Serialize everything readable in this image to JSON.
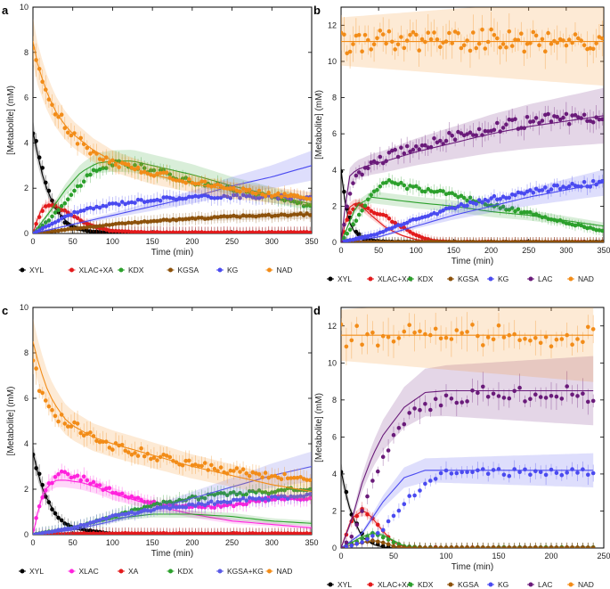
{
  "chart_data": [
    {
      "type": "scatter",
      "panel": "a",
      "xlabel": "Time (min)",
      "ylabel": "[Metabolite] (mM)",
      "xlim": [
        0,
        350
      ],
      "ylim": [
        0,
        10
      ],
      "xticks": [
        0,
        50,
        100,
        150,
        200,
        250,
        300,
        350
      ],
      "yticks": [
        0,
        2,
        4,
        6,
        8,
        10
      ],
      "legend_position": "bottom",
      "series": [
        {
          "name": "XYL",
          "color": "#000000",
          "x": [
            0,
            10,
            20,
            30,
            40,
            50,
            75,
            100,
            150,
            200,
            250,
            300,
            350
          ],
          "y": [
            4.5,
            3.0,
            1.8,
            1.0,
            0.5,
            0.25,
            0.08,
            0.05,
            0.02,
            0.02,
            0.02,
            0.02,
            0.02
          ],
          "fit": [
            4.5,
            2.8,
            1.7,
            1.0,
            0.6,
            0.35,
            0.1,
            0.03,
            0,
            0,
            0,
            0,
            0
          ]
        },
        {
          "name": "XLAC+XA",
          "color": "#e31a1c",
          "x": [
            0,
            10,
            20,
            30,
            40,
            50,
            60,
            75,
            100,
            150,
            200,
            250,
            300,
            350
          ],
          "y": [
            0.1,
            0.9,
            1.3,
            1.2,
            1.0,
            0.8,
            0.55,
            0.3,
            0.1,
            0.05,
            0.05,
            0.05,
            0.05,
            0.05
          ],
          "fit": [
            0,
            1.1,
            1.3,
            1.2,
            1.0,
            0.8,
            0.6,
            0.4,
            0.15,
            0.02,
            0,
            0,
            0,
            0
          ]
        },
        {
          "name": "KDX",
          "color": "#2ca02c",
          "x": [
            0,
            20,
            40,
            60,
            80,
            100,
            125,
            150,
            200,
            250,
            300,
            350
          ],
          "y": [
            0,
            0.6,
            1.4,
            2.2,
            2.8,
            3.1,
            3.0,
            2.8,
            2.3,
            2.0,
            1.6,
            1.2
          ],
          "fit": [
            0,
            0.9,
            1.9,
            2.7,
            3.1,
            3.2,
            3.2,
            3.0,
            2.6,
            2.1,
            1.7,
            1.3
          ]
        },
        {
          "name": "KGSA",
          "color": "#8c510a",
          "x": [
            0,
            50,
            100,
            150,
            200,
            250,
            300,
            350
          ],
          "y": [
            0,
            0.2,
            0.4,
            0.55,
            0.65,
            0.75,
            0.8,
            0.85
          ],
          "fit": [
            0,
            0.2,
            0.4,
            0.55,
            0.65,
            0.72,
            0.78,
            0.82
          ]
        },
        {
          "name": "KG",
          "color": "#4a4af0",
          "x": [
            0,
            50,
            100,
            150,
            200,
            250,
            300,
            350
          ],
          "y": [
            0,
            0.9,
            1.3,
            1.5,
            1.6,
            1.65,
            1.6,
            1.6
          ],
          "fit": [
            0,
            0.4,
            0.8,
            1.2,
            1.6,
            2.1,
            2.5,
            3.0
          ]
        },
        {
          "name": "NAD",
          "color": "#f28c18",
          "x": [
            0,
            5,
            10,
            20,
            30,
            40,
            50,
            75,
            100,
            150,
            200,
            250,
            300,
            350
          ],
          "y": [
            8.0,
            7.3,
            6.9,
            6.0,
            5.3,
            4.8,
            4.3,
            3.6,
            3.1,
            2.7,
            2.3,
            2.0,
            1.7,
            1.6
          ],
          "fit": [
            8.5,
            7.6,
            7.0,
            6.0,
            5.3,
            4.8,
            4.4,
            3.7,
            3.2,
            2.6,
            2.2,
            1.9,
            1.7,
            1.5
          ]
        }
      ],
      "legend": [
        "XYL",
        "XLAC+XA",
        "KDX",
        "KGSA",
        "KG",
        "NAD"
      ]
    },
    {
      "type": "scatter",
      "panel": "b",
      "xlabel": "Time (min)",
      "ylabel": "[Metabolite] (mM)",
      "xlim": [
        0,
        350
      ],
      "ylim": [
        0,
        13
      ],
      "xticks": [
        0,
        50,
        100,
        150,
        200,
        250,
        300,
        350
      ],
      "yticks": [
        0,
        2,
        4,
        6,
        8,
        10,
        12
      ],
      "legend_position": "bottom",
      "series": [
        {
          "name": "XYL",
          "color": "#000000",
          "x": [
            0,
            5,
            10,
            20,
            30,
            50,
            100,
            200,
            350
          ],
          "y": [
            4.0,
            2.5,
            1.5,
            0.6,
            0.2,
            0.05,
            0.02,
            0.02,
            0.02
          ],
          "fit": [
            4.0,
            2.2,
            1.2,
            0.4,
            0.1,
            0,
            0,
            0,
            0
          ]
        },
        {
          "name": "XLAC+XA",
          "color": "#e31a1c",
          "x": [
            0,
            10,
            20,
            30,
            40,
            60,
            80,
            100,
            120,
            150,
            200,
            350
          ],
          "y": [
            0,
            1.5,
            2.1,
            2.0,
            1.8,
            1.4,
            0.9,
            0.4,
            0.1,
            0.02,
            0.02,
            0.02
          ],
          "fit": [
            0,
            1.9,
            2.2,
            1.9,
            1.5,
            0.8,
            0.4,
            0.15,
            0.05,
            0,
            0,
            0
          ]
        },
        {
          "name": "KDX",
          "color": "#2ca02c",
          "x": [
            0,
            20,
            40,
            60,
            80,
            100,
            150,
            200,
            250,
            300,
            350
          ],
          "y": [
            0,
            1.2,
            2.6,
            3.4,
            3.2,
            3.0,
            2.6,
            2.1,
            1.6,
            1.1,
            0.6
          ],
          "fit": [
            0,
            2.0,
            2.5,
            2.4,
            2.3,
            2.2,
            2.0,
            1.7,
            1.5,
            1.2,
            0.9
          ]
        },
        {
          "name": "KGSA",
          "color": "#8c510a",
          "x": [
            0,
            100,
            200,
            350
          ],
          "y": [
            0,
            0.02,
            0.02,
            0.02
          ],
          "fit": [
            0,
            0,
            0,
            0
          ]
        },
        {
          "name": "KG",
          "color": "#4a4af0",
          "x": [
            0,
            50,
            100,
            150,
            200,
            250,
            300,
            350
          ],
          "y": [
            0,
            0.5,
            1.3,
            1.9,
            2.4,
            2.8,
            3.1,
            3.3
          ],
          "fit": [
            0,
            0.3,
            0.9,
            1.5,
            2.0,
            2.5,
            2.9,
            3.3
          ]
        },
        {
          "name": "LAC",
          "color": "#6a1b7a",
          "x": [
            0,
            10,
            20,
            40,
            60,
            100,
            150,
            200,
            250,
            300,
            350
          ],
          "y": [
            0,
            2.5,
            3.6,
            4.3,
            4.7,
            5.3,
            5.9,
            6.3,
            6.6,
            6.9,
            7.0
          ],
          "fit": [
            0,
            3.6,
            4.0,
            4.3,
            4.5,
            5.0,
            5.5,
            6.0,
            6.4,
            6.7,
            7.0
          ]
        },
        {
          "name": "NAD",
          "color": "#f28c18",
          "x": [
            0,
            50,
            100,
            150,
            200,
            250,
            300,
            350
          ],
          "y": [
            11.0,
            11.1,
            11.2,
            11.1,
            11.2,
            11.1,
            11.1,
            11.0
          ],
          "fit": [
            11.1,
            11.1,
            11.1,
            11.1,
            11.1,
            11.1,
            11.1,
            11.1
          ]
        }
      ],
      "legend": [
        "XYL",
        "XLAC+XA",
        "KDX",
        "KGSA",
        "KG",
        "LAC",
        "NAD"
      ]
    },
    {
      "type": "scatter",
      "panel": "c",
      "xlabel": "Time (min)",
      "ylabel": "[Metabolite] (mM)",
      "xlim": [
        0,
        350
      ],
      "ylim": [
        0,
        10
      ],
      "xticks": [
        0,
        50,
        100,
        150,
        200,
        250,
        300,
        350
      ],
      "yticks": [
        0,
        2,
        4,
        6,
        8,
        10
      ],
      "legend_position": "bottom",
      "series": [
        {
          "name": "XYL",
          "color": "#000000",
          "x": [
            0,
            10,
            20,
            30,
            40,
            50,
            75,
            100,
            150,
            250,
            350
          ],
          "y": [
            3.6,
            2.3,
            1.4,
            0.8,
            0.5,
            0.3,
            0.15,
            0.05,
            0.02,
            0.02,
            0.02
          ],
          "fit": [
            3.6,
            2.2,
            1.4,
            0.8,
            0.5,
            0.3,
            0.1,
            0.03,
            0,
            0,
            0
          ]
        },
        {
          "name": "XLAC",
          "color": "#ff22dd",
          "x": [
            0,
            10,
            20,
            30,
            40,
            60,
            80,
            100,
            150,
            200,
            250,
            300,
            350
          ],
          "y": [
            0.2,
            1.5,
            2.2,
            2.6,
            2.7,
            2.5,
            2.2,
            1.9,
            1.4,
            1.2,
            1.3,
            1.6,
            1.6
          ],
          "fit": [
            0,
            1.6,
            2.2,
            2.4,
            2.4,
            2.3,
            2.1,
            1.8,
            1.3,
            0.9,
            0.6,
            0.45,
            0.3
          ]
        },
        {
          "name": "XA",
          "color": "#e31a1c",
          "x": [
            0,
            50,
            100,
            150,
            200,
            250,
            300,
            350
          ],
          "y": [
            0,
            0.05,
            0.05,
            0.05,
            0.05,
            0.05,
            0.05,
            0.05
          ],
          "fit": [
            0,
            0.02,
            0.02,
            0.02,
            0.02,
            0.02,
            0.02,
            0.02
          ]
        },
        {
          "name": "KDX",
          "color": "#2ca02c",
          "x": [
            0,
            50,
            100,
            150,
            200,
            250,
            300,
            350
          ],
          "y": [
            0,
            0.3,
            0.8,
            1.3,
            1.6,
            1.8,
            1.9,
            2.0
          ],
          "fit": [
            0,
            0.3,
            0.7,
            0.9,
            0.9,
            0.8,
            0.6,
            0.5
          ]
        },
        {
          "name": "KGSA+KG",
          "color": "#5a5ae6",
          "x": [
            0,
            50,
            100,
            150,
            200,
            250,
            300,
            350
          ],
          "y": [
            0,
            0.3,
            0.8,
            1.1,
            1.3,
            1.5,
            1.6,
            1.7
          ],
          "fit": [
            0,
            0.2,
            0.6,
            1.1,
            1.6,
            2.1,
            2.6,
            3.0
          ]
        },
        {
          "name": "NAD",
          "color": "#f28c18",
          "x": [
            0,
            5,
            10,
            20,
            30,
            40,
            50,
            75,
            100,
            150,
            200,
            250,
            300,
            350
          ],
          "y": [
            7.5,
            6.9,
            6.5,
            5.9,
            5.3,
            5.0,
            4.8,
            4.3,
            3.9,
            3.5,
            3.1,
            2.8,
            2.6,
            2.4
          ],
          "fit": [
            8.5,
            7.8,
            7.2,
            6.2,
            5.6,
            5.1,
            4.8,
            4.3,
            4.0,
            3.5,
            3.0,
            2.6,
            2.2,
            1.9
          ]
        }
      ],
      "legend": [
        "XYL",
        "XLAC",
        "XA",
        "KDX",
        "KGSA+KG",
        "NAD"
      ]
    },
    {
      "type": "scatter",
      "panel": "d",
      "xlabel": "Time (min)",
      "ylabel": "[Metabolite] (mM)",
      "xlim": [
        0,
        250
      ],
      "ylim": [
        0,
        13
      ],
      "xticks": [
        0,
        50,
        100,
        150,
        200,
        250
      ],
      "yticks": [
        0,
        2,
        4,
        6,
        8,
        10,
        12
      ],
      "legend_position": "bottom",
      "series": [
        {
          "name": "XYL",
          "color": "#000000",
          "x": [
            0,
            5,
            10,
            20,
            30,
            40,
            50,
            100,
            150,
            240
          ],
          "y": [
            4.2,
            3.0,
            1.8,
            0.8,
            0.3,
            0.1,
            0.05,
            0.02,
            0.02,
            0.02
          ],
          "fit": [
            4.2,
            2.8,
            1.8,
            0.6,
            0.2,
            0.05,
            0,
            0,
            0,
            0
          ]
        },
        {
          "name": "XLAC+XA",
          "color": "#e31a1c",
          "x": [
            0,
            10,
            20,
            25,
            30,
            40,
            50,
            60,
            80,
            240
          ],
          "y": [
            0,
            1.5,
            2.0,
            1.9,
            1.6,
            0.9,
            0.3,
            0.1,
            0.02,
            0.02
          ],
          "fit": [
            0,
            1.6,
            2.0,
            1.9,
            1.6,
            0.9,
            0.3,
            0.05,
            0,
            0
          ]
        },
        {
          "name": "KDX",
          "color": "#2ca02c",
          "x": [
            0,
            20,
            30,
            40,
            50,
            60,
            80,
            240
          ],
          "y": [
            0,
            0.5,
            0.8,
            0.6,
            0.3,
            0.1,
            0.02,
            0.02
          ],
          "fit": [
            0,
            0.6,
            0.8,
            0.7,
            0.4,
            0.1,
            0,
            0
          ]
        },
        {
          "name": "KGSA",
          "color": "#8c510a",
          "x": [
            0,
            20,
            30,
            40,
            50,
            60,
            240
          ],
          "y": [
            0,
            0.3,
            0.4,
            0.3,
            0.1,
            0.02,
            0.02
          ],
          "fit": [
            0,
            0.3,
            0.4,
            0.3,
            0.1,
            0,
            0
          ]
        },
        {
          "name": "KG",
          "color": "#4a4af0",
          "x": [
            0,
            20,
            40,
            60,
            80,
            100,
            120,
            150,
            200,
            240
          ],
          "y": [
            0,
            0.3,
            1.0,
            2.5,
            3.5,
            4.0,
            4.1,
            4.1,
            4.1,
            4.1
          ],
          "fit": [
            0,
            0.8,
            2.5,
            3.8,
            4.2,
            4.2,
            4.2,
            4.2,
            4.2,
            4.2
          ]
        },
        {
          "name": "LAC",
          "color": "#6a1b7a",
          "x": [
            0,
            10,
            20,
            30,
            40,
            60,
            80,
            100,
            120,
            150,
            200,
            240
          ],
          "y": [
            0,
            0.6,
            2.0,
            3.6,
            5.0,
            6.8,
            7.8,
            8.1,
            8.3,
            8.3,
            8.3,
            8.3
          ],
          "fit": [
            0,
            1.5,
            3.5,
            5.0,
            6.1,
            7.6,
            8.4,
            8.5,
            8.5,
            8.5,
            8.5,
            8.5
          ]
        },
        {
          "name": "NAD",
          "color": "#f28c18",
          "x": [
            0,
            50,
            100,
            150,
            200,
            240
          ],
          "y": [
            11.5,
            11.5,
            11.5,
            11.5,
            11.5,
            11.4
          ],
          "fit": [
            11.5,
            11.5,
            11.5,
            11.5,
            11.5,
            11.5
          ]
        }
      ],
      "legend": [
        "XYL",
        "XLAC+XA",
        "KDX",
        "KGSA",
        "KG",
        "LAC",
        "NAD"
      ]
    }
  ]
}
